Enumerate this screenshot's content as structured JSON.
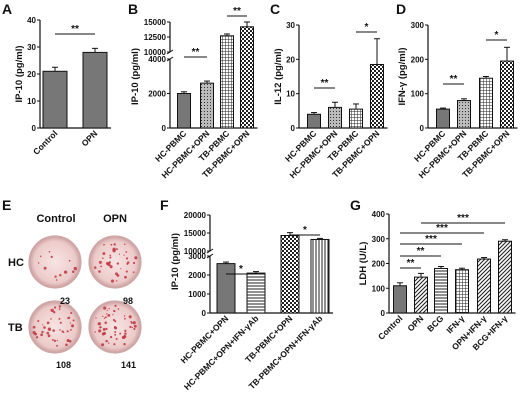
{
  "panels": {
    "A": "A",
    "B": "B",
    "C": "C",
    "D": "D",
    "E": "E",
    "F": "F",
    "G": "G"
  },
  "chart_data": [
    {
      "panel": "A",
      "type": "bar",
      "categories": [
        "Control",
        "OPN"
      ],
      "values": [
        21,
        28
      ],
      "errors": [
        1.5,
        1.5
      ],
      "ylabel": "IP-10 (pg/ml)",
      "ylim": [
        0,
        40
      ],
      "yticks": [
        "0",
        "10",
        "20",
        "30",
        "40"
      ],
      "significance": [
        {
          "from": 0,
          "to": 1,
          "label": "**"
        }
      ]
    },
    {
      "panel": "B",
      "type": "bar",
      "categories": [
        "HC-PBMC",
        "HC-PBMC+OPN",
        "TB-PBMC",
        "TB-PBMC+OPN"
      ],
      "values": [
        2000,
        2600,
        12700,
        14200
      ],
      "errors": [
        100,
        120,
        300,
        800
      ],
      "ylabel": "IP-10 (pg/ml)",
      "yticks": [
        "0",
        "2000",
        "4000",
        "10000",
        "12500",
        "15000"
      ],
      "axis_break": [
        4000,
        10000
      ],
      "significance": [
        {
          "from": 0,
          "to": 1,
          "label": "**"
        },
        {
          "from": 2,
          "to": 3,
          "label": "**"
        }
      ]
    },
    {
      "panel": "C",
      "type": "bar",
      "categories": [
        "HC-PBMC",
        "HC-PBMC+OPN",
        "TB-PBMC",
        "TB-PBMC+OPN"
      ],
      "values": [
        4,
        6,
        5.5,
        18.5
      ],
      "errors": [
        0.5,
        1.5,
        1.5,
        7.5
      ],
      "ylabel": "IL-12 (pg/ml)",
      "ylim": [
        0,
        30
      ],
      "yticks": [
        "0",
        "10",
        "20",
        "30"
      ],
      "significance": [
        {
          "from": 0,
          "to": 1,
          "label": "**"
        },
        {
          "from": 2,
          "to": 3,
          "label": "*"
        }
      ]
    },
    {
      "panel": "D",
      "type": "bar",
      "categories": [
        "HC-PBMC",
        "HC-PBMC+OPN",
        "TB-PBMC",
        "TB-PBMC+OPN"
      ],
      "values": [
        55,
        80,
        145,
        195
      ],
      "errors": [
        3,
        5,
        5,
        40
      ],
      "ylabel": "IFN-γ (pg/ml)",
      "ylim": [
        0,
        300
      ],
      "yticks": [
        "0",
        "100",
        "200",
        "300"
      ],
      "significance": [
        {
          "from": 0,
          "to": 1,
          "label": "**"
        },
        {
          "from": 2,
          "to": 3,
          "label": "*"
        }
      ]
    },
    {
      "panel": "F",
      "type": "bar",
      "categories": [
        "HC-PBMC+OPN",
        "HC-PBMC+OPN+IFN-γAb",
        "TB-PBMC+OPN",
        "TB-PBMC+OPN+IFN-γAb"
      ],
      "values": [
        2600,
        2100,
        14300,
        13200
      ],
      "errors": [
        80,
        80,
        800,
        300
      ],
      "ylabel": "IP-10 (pg/ml)",
      "yticks": [
        "0",
        "1000",
        "2000",
        "3000",
        "10000",
        "15000",
        "20000"
      ],
      "axis_break": [
        3000,
        10000
      ],
      "significance": [
        {
          "from": 0,
          "to": 1,
          "label": "*"
        },
        {
          "from": 2,
          "to": 3,
          "label": "*"
        }
      ]
    },
    {
      "panel": "G",
      "type": "bar",
      "categories": [
        "Control",
        "OPN",
        "BCG",
        "IFN-γ",
        "OPN+IFN-γ",
        "BCG+IFN-γ"
      ],
      "values": [
        110,
        145,
        180,
        175,
        218,
        290
      ],
      "errors": [
        12,
        15,
        8,
        6,
        6,
        6
      ],
      "ylabel": "LDH (U/L)",
      "ylim": [
        0,
        400
      ],
      "yticks": [
        "0",
        "100",
        "200",
        "300",
        "400"
      ],
      "significance": [
        {
          "from": 0,
          "to": 1,
          "label": "**"
        },
        {
          "from": 0,
          "to": 2,
          "label": "**"
        },
        {
          "from": 0,
          "to": 3,
          "label": "***"
        },
        {
          "from": 0,
          "to": 4,
          "label": "***"
        },
        {
          "from": 1,
          "to": 5,
          "label": "***"
        }
      ]
    }
  ],
  "elispot": {
    "columns": [
      "Control",
      "OPN"
    ],
    "rows": [
      "HC",
      "TB"
    ],
    "counts": [
      [
        "23",
        "98"
      ],
      [
        "108",
        "141"
      ]
    ]
  },
  "colors": {
    "well": "#f2d7d6",
    "well_rim": "#cfa9a8",
    "spot": "#c0313c",
    "bar_dark": "#777777"
  }
}
